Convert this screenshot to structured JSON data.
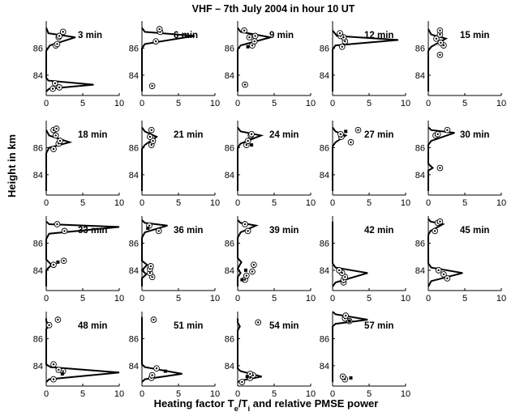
{
  "figure": {
    "title": "VHF – 7th July 2004 in hour 10 UT",
    "ylabel": "Height in km",
    "xlabel_main": "Heating factor T",
    "xlabel_sub_e": "e",
    "xlabel_mid": "/T",
    "xlabel_sub_i": "i",
    "xlabel_end": " and relative PMSE power"
  },
  "chart_data": {
    "type": "line",
    "title": "VHF – 7th July 2004 in hour 10 UT",
    "xlabel": "Heating factor Te/Ti and relative PMSE power",
    "ylabel": "Height in km",
    "xlim": [
      0,
      10
    ],
    "ylim": [
      82.5,
      88
    ],
    "xticks": [
      "0",
      "5",
      "10"
    ],
    "yticks": [
      "84",
      "86"
    ],
    "grid": false,
    "panels": [
      {
        "label": "3 min",
        "line": [
          [
            0,
            82.8
          ],
          [
            0.4,
            83.0
          ],
          [
            6.5,
            83.3
          ],
          [
            0.3,
            83.6
          ],
          [
            0,
            83.8
          ],
          [
            0,
            85.8
          ],
          [
            0.5,
            86.2
          ],
          [
            4.0,
            86.8
          ],
          [
            0.3,
            87.1
          ],
          [
            0,
            87.5
          ]
        ],
        "circles": [
          [
            0.9,
            83.0
          ],
          [
            1.8,
            83.1
          ],
          [
            1.2,
            83.4
          ],
          [
            1.3,
            86.2
          ],
          [
            1.5,
            86.3
          ],
          [
            1.7,
            86.8
          ],
          [
            1.8,
            86.9
          ],
          [
            2.3,
            87.2
          ]
        ],
        "squares": []
      },
      {
        "label": "6 min",
        "line": [
          [
            0,
            82.8
          ],
          [
            0,
            86.0
          ],
          [
            0.4,
            86.3
          ],
          [
            7.2,
            86.9
          ],
          [
            0.4,
            87.2
          ],
          [
            0,
            87.5
          ]
        ],
        "circles": [
          [
            1.4,
            83.2
          ],
          [
            1.9,
            86.5
          ],
          [
            2.5,
            87.2
          ],
          [
            2.4,
            87.4
          ]
        ],
        "squares": []
      },
      {
        "label": "9 min",
        "line": [
          [
            0,
            82.8
          ],
          [
            0,
            85.9
          ],
          [
            0.4,
            86.2
          ],
          [
            4.5,
            86.8
          ],
          [
            0.4,
            87.2
          ],
          [
            0,
            87.5
          ]
        ],
        "circles": [
          [
            1.0,
            83.3
          ],
          [
            2.0,
            86.2
          ],
          [
            2.3,
            86.5
          ],
          [
            1.6,
            86.8
          ],
          [
            2.4,
            86.9
          ],
          [
            0.9,
            87.3
          ]
        ],
        "squares": [
          [
            1.4,
            86.1
          ]
        ]
      },
      {
        "label": "12 min",
        "line": [
          [
            0,
            82.8
          ],
          [
            0,
            85.9
          ],
          [
            0.4,
            86.2
          ],
          [
            9.0,
            86.6
          ],
          [
            0.6,
            86.9
          ],
          [
            0,
            87.3
          ]
        ],
        "circles": [
          [
            1.3,
            86.1
          ],
          [
            1.7,
            86.5
          ],
          [
            1.5,
            86.8
          ],
          [
            1.1,
            86.9
          ],
          [
            1.0,
            87.1
          ]
        ],
        "squares": []
      },
      {
        "label": "15 min",
        "line": [
          [
            0,
            82.8
          ],
          [
            0,
            85.8
          ],
          [
            0.4,
            86.1
          ],
          [
            2.4,
            86.7
          ],
          [
            0.4,
            87.0
          ],
          [
            0,
            87.4
          ]
        ],
        "circles": [
          [
            1.6,
            85.5
          ],
          [
            2.1,
            86.2
          ],
          [
            1.7,
            86.4
          ],
          [
            1.1,
            86.7
          ],
          [
            1.6,
            87.0
          ],
          [
            1.6,
            87.3
          ]
        ],
        "squares": []
      },
      {
        "label": "18 min",
        "line": [
          [
            0,
            82.8
          ],
          [
            0,
            85.6
          ],
          [
            0.4,
            86.0
          ],
          [
            3.2,
            86.4
          ],
          [
            0.4,
            86.9
          ],
          [
            0,
            87.3
          ]
        ],
        "circles": [
          [
            1.0,
            85.9
          ],
          [
            1.7,
            86.3
          ],
          [
            1.9,
            86.5
          ],
          [
            1.3,
            86.9
          ],
          [
            1.0,
            87.3
          ],
          [
            1.4,
            87.4
          ]
        ],
        "squares": []
      },
      {
        "label": "21 min",
        "line": [
          [
            0,
            82.8
          ],
          [
            0,
            85.9
          ],
          [
            0.4,
            86.2
          ],
          [
            2.0,
            86.8
          ],
          [
            0.4,
            87.2
          ],
          [
            0,
            87.5
          ]
        ],
        "circles": [
          [
            1.3,
            86.2
          ],
          [
            1.5,
            86.5
          ],
          [
            1.1,
            86.8
          ],
          [
            1.3,
            87.3
          ]
        ],
        "squares": []
      },
      {
        "label": "24 min",
        "line": [
          [
            0,
            82.8
          ],
          [
            0,
            86.0
          ],
          [
            0.4,
            86.3
          ],
          [
            3.2,
            86.9
          ],
          [
            0.4,
            87.2
          ],
          [
            0,
            87.5
          ]
        ],
        "circles": [
          [
            1.2,
            86.2
          ],
          [
            1.4,
            86.5
          ],
          [
            1.8,
            86.9
          ],
          [
            1.9,
            87.0
          ]
        ],
        "squares": [
          [
            1.9,
            86.2
          ]
        ]
      },
      {
        "label": "27 min",
        "line": [
          [
            0,
            82.8
          ],
          [
            0,
            86.1
          ],
          [
            0.4,
            86.4
          ],
          [
            1.8,
            86.9
          ],
          [
            0.4,
            87.2
          ],
          [
            0,
            87.5
          ]
        ],
        "circles": [
          [
            2.5,
            86.4
          ],
          [
            1.2,
            86.8
          ],
          [
            1.1,
            87.0
          ],
          [
            3.5,
            87.3
          ]
        ],
        "squares": [
          [
            1.8,
            87.2
          ]
        ]
      },
      {
        "label": "30 min",
        "line": [
          [
            0,
            82.8
          ],
          [
            0,
            84.3
          ],
          [
            0.6,
            84.5
          ],
          [
            0,
            84.8
          ],
          [
            0,
            86.2
          ],
          [
            0.4,
            86.5
          ],
          [
            3.6,
            87.1
          ],
          [
            0.4,
            87.3
          ],
          [
            0,
            87.5
          ]
        ],
        "circles": [
          [
            1.6,
            84.5
          ],
          [
            1.0,
            86.9
          ],
          [
            1.3,
            87.0
          ],
          [
            2.6,
            87.3
          ]
        ],
        "squares": []
      },
      {
        "label": "33 min",
        "line": [
          [
            0,
            82.8
          ],
          [
            0,
            84.0
          ],
          [
            0.7,
            84.4
          ],
          [
            0,
            84.8
          ],
          [
            0,
            86.3
          ],
          [
            0.4,
            86.7
          ],
          [
            10,
            87.2
          ],
          [
            0.4,
            87.4
          ],
          [
            0,
            87.6
          ]
        ],
        "circles": [
          [
            1.0,
            84.4
          ],
          [
            2.4,
            84.7
          ],
          [
            2.5,
            86.9
          ],
          [
            1.5,
            87.4
          ]
        ],
        "squares": [
          [
            1.6,
            84.6
          ]
        ]
      },
      {
        "label": "36 min",
        "line": [
          [
            0,
            82.8
          ],
          [
            0,
            83.4
          ],
          [
            0.6,
            83.7
          ],
          [
            0,
            84.0
          ],
          [
            0.7,
            84.4
          ],
          [
            0,
            84.7
          ],
          [
            0,
            86.4
          ],
          [
            0.4,
            86.8
          ],
          [
            3.5,
            87.3
          ],
          [
            0.4,
            87.5
          ],
          [
            0,
            87.7
          ]
        ],
        "circles": [
          [
            1.4,
            83.5
          ],
          [
            1.1,
            83.8
          ],
          [
            1.1,
            84.1
          ],
          [
            1.2,
            84.3
          ],
          [
            2.3,
            86.9
          ],
          [
            1.0,
            87.3
          ]
        ],
        "squares": [
          [
            0.8,
            87.1
          ]
        ]
      },
      {
        "label": "39 min",
        "line": [
          [
            0,
            82.8
          ],
          [
            0,
            83.5
          ],
          [
            0.4,
            83.8
          ],
          [
            0,
            84.1
          ],
          [
            0.5,
            84.6
          ],
          [
            0,
            84.9
          ],
          [
            0,
            86.4
          ],
          [
            0.4,
            86.8
          ],
          [
            2.5,
            87.3
          ],
          [
            0.4,
            87.5
          ],
          [
            0,
            87.7
          ]
        ],
        "circles": [
          [
            1.0,
            83.3
          ],
          [
            1.2,
            83.6
          ],
          [
            2.0,
            83.9
          ],
          [
            2.2,
            84.4
          ],
          [
            1.4,
            86.9
          ],
          [
            1.0,
            87.4
          ]
        ],
        "squares": [
          [
            0.6,
            83.3
          ],
          [
            1.1,
            84.0
          ]
        ]
      },
      {
        "label": "42 min",
        "line": [
          [
            0,
            82.8
          ],
          [
            0.4,
            83.1
          ],
          [
            4.8,
            83.8
          ],
          [
            0.4,
            84.2
          ],
          [
            0,
            84.5
          ],
          [
            0,
            87.6
          ]
        ],
        "circles": [
          [
            1.5,
            83.1
          ],
          [
            1.5,
            83.3
          ],
          [
            1.7,
            83.5
          ],
          [
            1.3,
            83.8
          ],
          [
            0.9,
            84.0
          ]
        ],
        "squares": []
      },
      {
        "label": "45 min",
        "line": [
          [
            0,
            82.8
          ],
          [
            0.4,
            83.2
          ],
          [
            4.7,
            83.8
          ],
          [
            0.4,
            84.2
          ],
          [
            0,
            84.5
          ],
          [
            0,
            86.6
          ],
          [
            0.3,
            86.9
          ],
          [
            2.0,
            87.4
          ],
          [
            0.3,
            87.6
          ],
          [
            0,
            87.8
          ]
        ],
        "circles": [
          [
            2.6,
            83.4
          ],
          [
            2.1,
            83.7
          ],
          [
            1.4,
            84.0
          ],
          [
            0.9,
            86.9
          ],
          [
            1.3,
            87.5
          ],
          [
            1.6,
            87.6
          ]
        ],
        "squares": []
      },
      {
        "label": "48 min",
        "line": [
          [
            0,
            82.8
          ],
          [
            0.4,
            83.0
          ],
          [
            10,
            83.5
          ],
          [
            0.6,
            83.9
          ],
          [
            0,
            84.1
          ],
          [
            0,
            86.7
          ],
          [
            0.4,
            87.0
          ],
          [
            0,
            87.3
          ],
          [
            0,
            87.5
          ]
        ],
        "circles": [
          [
            1.0,
            83.0
          ],
          [
            2.3,
            83.6
          ],
          [
            1.7,
            83.7
          ],
          [
            1.0,
            84.1
          ],
          [
            0.4,
            87.0
          ],
          [
            1.6,
            87.4
          ]
        ],
        "squares": [
          [
            2.2,
            83.4
          ]
        ]
      },
      {
        "label": "51 min",
        "line": [
          [
            0,
            82.8
          ],
          [
            0.4,
            83.0
          ],
          [
            5.5,
            83.4
          ],
          [
            0.4,
            83.9
          ],
          [
            0,
            84.1
          ],
          [
            0,
            87.6
          ]
        ],
        "circles": [
          [
            1.3,
            83.1
          ],
          [
            1.4,
            83.3
          ],
          [
            2.0,
            83.8
          ],
          [
            1.6,
            87.4
          ]
        ],
        "squares": [
          [
            3.2,
            83.6
          ]
        ]
      },
      {
        "label": "54 min",
        "line": [
          [
            0,
            82.8
          ],
          [
            0.4,
            82.9
          ],
          [
            3.3,
            83.2
          ],
          [
            0.4,
            83.6
          ],
          [
            0,
            83.8
          ],
          [
            0,
            86.6
          ],
          [
            0.3,
            86.9
          ],
          [
            0,
            87.2
          ],
          [
            0,
            87.5
          ]
        ],
        "circles": [
          [
            0.6,
            82.8
          ],
          [
            1.7,
            83.1
          ],
          [
            2.1,
            83.3
          ],
          [
            1.7,
            83.4
          ],
          [
            2.8,
            87.2
          ]
        ],
        "squares": [
          [
            1.3,
            83.2
          ]
        ]
      },
      {
        "label": "57 min",
        "line": [
          [
            0,
            82.8
          ],
          [
            0,
            86.9
          ],
          [
            0.4,
            87.1
          ],
          [
            4.8,
            87.4
          ],
          [
            0.4,
            87.8
          ],
          [
            0,
            88.0
          ]
        ],
        "circles": [
          [
            1.7,
            83.0
          ],
          [
            1.4,
            83.2
          ],
          [
            2.3,
            87.3
          ],
          [
            1.7,
            87.5
          ],
          [
            1.8,
            87.7
          ]
        ],
        "squares": [
          [
            2.5,
            83.1
          ],
          [
            2.3,
            87.3
          ]
        ]
      }
    ]
  }
}
